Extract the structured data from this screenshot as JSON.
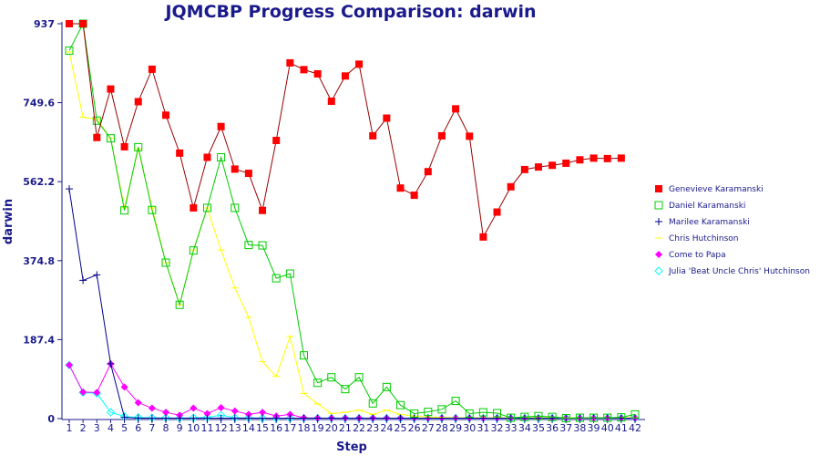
{
  "chart_data": {
    "type": "line",
    "title": "JQMCBP Progress Comparison: darwin",
    "xlabel": "Step",
    "ylabel": "darwin",
    "x": [
      1,
      2,
      3,
      4,
      5,
      6,
      7,
      8,
      9,
      10,
      11,
      12,
      13,
      14,
      15,
      16,
      17,
      18,
      19,
      20,
      21,
      22,
      23,
      24,
      25,
      26,
      27,
      28,
      29,
      30,
      31,
      32,
      33,
      34,
      35,
      36,
      37,
      38,
      39,
      40,
      41,
      42
    ],
    "yticks": [
      "0",
      "187.4",
      "374.8",
      "562.2",
      "749.6",
      "937"
    ],
    "ylim": [
      0,
      937
    ],
    "grid": false,
    "legend_position": "right",
    "series": [
      {
        "name": "Genevieve Karamanski",
        "color": "#ff0000",
        "line_color": "#990000",
        "marker": "square",
        "values": [
          937,
          937,
          667,
          782,
          645,
          752,
          829,
          720,
          630,
          500,
          620,
          693,
          592,
          582,
          494,
          660,
          844,
          828,
          818,
          753,
          813,
          841,
          671,
          713,
          547,
          530,
          586,
          671,
          735,
          670,
          431,
          490,
          550,
          591,
          597,
          601,
          606,
          614,
          618,
          617,
          618,
          null
        ]
      },
      {
        "name": "Daniel Karamanski",
        "color": "#00cc00",
        "marker": "open-square",
        "values": [
          873,
          937,
          707,
          665,
          494,
          644,
          495,
          370,
          270,
          399,
          500,
          620,
          500,
          412,
          411,
          333,
          344,
          150,
          85,
          98,
          70,
          98,
          36,
          75,
          32,
          12,
          16,
          22,
          42,
          12,
          15,
          13,
          2,
          4,
          6,
          4,
          1,
          2,
          2,
          2,
          3,
          10
        ]
      },
      {
        "name": "Marilee Karamanski",
        "color": "#00008b",
        "marker": "plus",
        "values": [
          545,
          328,
          341,
          130,
          3,
          1,
          1,
          1,
          1,
          1,
          1,
          1,
          1,
          1,
          1,
          1,
          1,
          1,
          1,
          1,
          1,
          1,
          1,
          1,
          1,
          1,
          1,
          1,
          1,
          1,
          1,
          1,
          1,
          1,
          1,
          1,
          1,
          1,
          1,
          1,
          1,
          1
        ]
      },
      {
        "name": "Chris Hutchinson",
        "color": "#ffff00",
        "marker": "line",
        "values": [
          870,
          715,
          710,
          665,
          500,
          640,
          500,
          370,
          270,
          400,
          500,
          400,
          310,
          240,
          135,
          100,
          195,
          60,
          35,
          12,
          15,
          20,
          10,
          20,
          10,
          6,
          4,
          3,
          2,
          2,
          2,
          2,
          2,
          2,
          2,
          2,
          2,
          2,
          2,
          2,
          2,
          2
        ]
      },
      {
        "name": "Come to Papa",
        "color": "#ff00ff",
        "marker": "diamond",
        "values": [
          127,
          63,
          62,
          130,
          75,
          38,
          25,
          15,
          8,
          25,
          12,
          26,
          18,
          10,
          15,
          6,
          10,
          2,
          1,
          1,
          1,
          1,
          1,
          1,
          1,
          1,
          1,
          1,
          1,
          1,
          1,
          1,
          1,
          1,
          1,
          1,
          1,
          1,
          1,
          1,
          1,
          1
        ]
      },
      {
        "name": "Julia 'Beat Uncle Chris' Hutchinson",
        "color": "#00ffff",
        "marker": "diamond-open",
        "values": [
          127,
          62,
          60,
          15,
          5,
          3,
          2,
          2,
          1,
          2,
          3,
          8,
          2,
          2,
          1,
          1,
          1,
          1,
          1,
          1,
          1,
          1,
          1,
          1,
          1,
          1,
          1,
          1,
          1,
          1,
          1,
          1,
          1,
          1,
          1,
          1,
          1,
          1,
          1,
          1,
          1,
          1
        ]
      }
    ]
  }
}
